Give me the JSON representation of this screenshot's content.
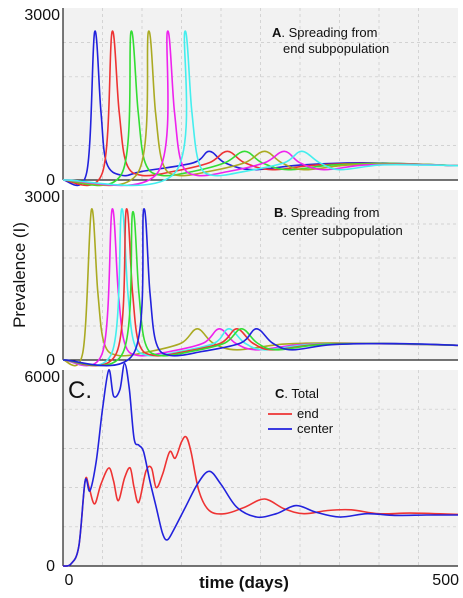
{
  "chart_data": [
    {
      "type": "line",
      "panel": "A",
      "annotation": {
        "letter": "A",
        "line1": ". Spreading from",
        "line2": "end subpopulation"
      },
      "ylim": [
        0,
        3000
      ],
      "y_ticks": [
        "3000",
        "0"
      ],
      "xlim": [
        0,
        500
      ],
      "series": [
        {
          "color": "#2222dd",
          "values": [
            [
              0,
              0
            ],
            [
              30,
              130
            ],
            [
              40,
              2580
            ],
            [
              48,
              1200
            ],
            [
              55,
              300
            ],
            [
              75,
              80
            ],
            [
              100,
              150
            ],
            [
              165,
              300
            ],
            [
              185,
              500
            ],
            [
              205,
              300
            ],
            [
              240,
              180
            ],
            [
              300,
              260
            ],
            [
              380,
              300
            ],
            [
              500,
              250
            ]
          ]
        },
        {
          "color": "#ee3333",
          "values": [
            [
              0,
              0
            ],
            [
              50,
              130
            ],
            [
              62,
              2580
            ],
            [
              71,
              1200
            ],
            [
              80,
              300
            ],
            [
              100,
              80
            ],
            [
              140,
              150
            ],
            [
              185,
              300
            ],
            [
              208,
              500
            ],
            [
              230,
              300
            ],
            [
              265,
              180
            ],
            [
              320,
              260
            ],
            [
              400,
              290
            ],
            [
              500,
              250
            ]
          ]
        },
        {
          "color": "#33dd33",
          "values": [
            [
              0,
              0
            ],
            [
              75,
              130
            ],
            [
              86,
              2580
            ],
            [
              95,
              1200
            ],
            [
              104,
              300
            ],
            [
              125,
              80
            ],
            [
              165,
              150
            ],
            [
              205,
              300
            ],
            [
              230,
              500
            ],
            [
              252,
              300
            ],
            [
              285,
              180
            ],
            [
              340,
              260
            ],
            [
              415,
              290
            ],
            [
              500,
              250
            ]
          ]
        },
        {
          "color": "#aaaa22",
          "values": [
            [
              0,
              0
            ],
            [
              95,
              130
            ],
            [
              108,
              2580
            ],
            [
              117,
              1200
            ],
            [
              126,
              300
            ],
            [
              145,
              80
            ],
            [
              185,
              150
            ],
            [
              230,
              300
            ],
            [
              255,
              500
            ],
            [
              277,
              300
            ],
            [
              305,
              180
            ],
            [
              360,
              260
            ],
            [
              430,
              280
            ],
            [
              500,
              250
            ]
          ]
        },
        {
          "color": "#ee22ee",
          "values": [
            [
              0,
              0
            ],
            [
              120,
              130
            ],
            [
              132,
              2580
            ],
            [
              141,
              1200
            ],
            [
              150,
              300
            ],
            [
              170,
              80
            ],
            [
              210,
              150
            ],
            [
              255,
              300
            ],
            [
              280,
              500
            ],
            [
              300,
              300
            ],
            [
              330,
              180
            ],
            [
              380,
              260
            ],
            [
              445,
              270
            ],
            [
              500,
              250
            ]
          ]
        },
        {
          "color": "#44eeee",
          "values": [
            [
              0,
              0
            ],
            [
              142,
              130
            ],
            [
              154,
              2580
            ],
            [
              163,
              1200
            ],
            [
              172,
              300
            ],
            [
              190,
              80
            ],
            [
              230,
              150
            ],
            [
              280,
              300
            ],
            [
              302,
              500
            ],
            [
              325,
              300
            ],
            [
              350,
              180
            ],
            [
              400,
              260
            ],
            [
              460,
              260
            ],
            [
              500,
              250
            ]
          ]
        }
      ]
    },
    {
      "type": "line",
      "panel": "B",
      "annotation": {
        "letter": "B",
        "line1": ". Spreading from",
        "line2": "center subpopulation"
      },
      "ylabel": "Prevalence (I)",
      "ylim": [
        0,
        3000
      ],
      "y_ticks": [
        "3000",
        "0"
      ],
      "xlim": [
        0,
        500
      ],
      "series": [
        {
          "color": "#aaaa22",
          "values": [
            [
              0,
              0
            ],
            [
              25,
              130
            ],
            [
              36,
              2650
            ],
            [
              44,
              1200
            ],
            [
              52,
              300
            ],
            [
              70,
              80
            ],
            [
              110,
              150
            ],
            [
              150,
              300
            ],
            [
              170,
              550
            ],
            [
              190,
              300
            ],
            [
              220,
              180
            ],
            [
              280,
              280
            ],
            [
              360,
              300
            ],
            [
              500,
              260
            ]
          ]
        },
        {
          "color": "#ee22ee",
          "values": [
            [
              0,
              0
            ],
            [
              50,
              130
            ],
            [
              62,
              2650
            ],
            [
              70,
              1200
            ],
            [
              78,
              300
            ],
            [
              95,
              80
            ],
            [
              135,
              150
            ],
            [
              178,
              300
            ],
            [
              198,
              550
            ],
            [
              218,
              300
            ],
            [
              245,
              180
            ],
            [
              300,
              270
            ],
            [
              380,
              290
            ],
            [
              500,
              260
            ]
          ]
        },
        {
          "color": "#44eeee",
          "values": [
            [
              0,
              0
            ],
            [
              62,
              130
            ],
            [
              74,
              2650
            ],
            [
              82,
              1200
            ],
            [
              90,
              300
            ],
            [
              108,
              80
            ],
            [
              148,
              150
            ],
            [
              192,
              300
            ],
            [
              210,
              550
            ],
            [
              230,
              300
            ],
            [
              255,
              180
            ],
            [
              310,
              270
            ],
            [
              390,
              290
            ],
            [
              500,
              260
            ]
          ]
        },
        {
          "color": "#ee3333",
          "values": [
            [
              0,
              0
            ],
            [
              68,
              130
            ],
            [
              80,
              2650
            ],
            [
              88,
              1200
            ],
            [
              96,
              300
            ],
            [
              115,
              80
            ],
            [
              155,
              150
            ],
            [
              200,
              300
            ],
            [
              220,
              550
            ],
            [
              240,
              300
            ],
            [
              265,
              180
            ],
            [
              320,
              270
            ],
            [
              400,
              290
            ],
            [
              500,
              260
            ]
          ]
        },
        {
          "color": "#33dd33",
          "values": [
            [
              0,
              0
            ],
            [
              76,
              130
            ],
            [
              88,
              2600
            ],
            [
              96,
              1200
            ],
            [
              104,
              300
            ],
            [
              122,
              80
            ],
            [
              162,
              150
            ],
            [
              205,
              300
            ],
            [
              226,
              550
            ],
            [
              246,
              300
            ],
            [
              270,
              180
            ],
            [
              325,
              270
            ],
            [
              405,
              290
            ],
            [
              500,
              260
            ]
          ]
        },
        {
          "color": "#2222dd",
          "values": [
            [
              0,
              0
            ],
            [
              90,
              130
            ],
            [
              102,
              2650
            ],
            [
              110,
              1200
            ],
            [
              118,
              300
            ],
            [
              136,
              80
            ],
            [
              176,
              150
            ],
            [
              225,
              300
            ],
            [
              245,
              550
            ],
            [
              265,
              300
            ],
            [
              290,
              180
            ],
            [
              340,
              270
            ],
            [
              420,
              290
            ],
            [
              500,
              260
            ]
          ]
        }
      ]
    },
    {
      "type": "line",
      "panel": "C",
      "annotation": {
        "letter": "C",
        "line1": ". Total"
      },
      "big_letter": "C.",
      "ylim": [
        0,
        6000
      ],
      "y_ticks": [
        "6000",
        "0"
      ],
      "xlim": [
        0,
        500
      ],
      "x_ticks": [
        "0",
        "500"
      ],
      "xlabel": "time (days)",
      "series": [
        {
          "name": "end",
          "color": "#ee3333",
          "values": [
            [
              0,
              0
            ],
            [
              10,
              60
            ],
            [
              20,
              600
            ],
            [
              28,
              2600
            ],
            [
              33,
              2400
            ],
            [
              40,
              1900
            ],
            [
              48,
              2500
            ],
            [
              58,
              3000
            ],
            [
              64,
              2600
            ],
            [
              70,
              2000
            ],
            [
              78,
              2700
            ],
            [
              85,
              3000
            ],
            [
              90,
              2400
            ],
            [
              96,
              1950
            ],
            [
              105,
              2900
            ],
            [
              112,
              3000
            ],
            [
              118,
              2400
            ],
            [
              126,
              2800
            ],
            [
              135,
              3500
            ],
            [
              142,
              3300
            ],
            [
              150,
              3800
            ],
            [
              156,
              3950
            ],
            [
              162,
              3500
            ],
            [
              172,
              2300
            ],
            [
              185,
              1700
            ],
            [
              205,
              1600
            ],
            [
              230,
              1800
            ],
            [
              255,
              2050
            ],
            [
              280,
              1750
            ],
            [
              305,
              1600
            ],
            [
              335,
              1700
            ],
            [
              365,
              1720
            ],
            [
              400,
              1600
            ],
            [
              440,
              1620
            ],
            [
              500,
              1580
            ]
          ]
        },
        {
          "name": "center",
          "color": "#2222dd",
          "values": [
            [
              0,
              0
            ],
            [
              10,
              60
            ],
            [
              20,
              600
            ],
            [
              28,
              2600
            ],
            [
              34,
              2300
            ],
            [
              42,
              3200
            ],
            [
              50,
              4800
            ],
            [
              58,
              6000
            ],
            [
              64,
              5200
            ],
            [
              72,
              5400
            ],
            [
              78,
              6200
            ],
            [
              84,
              5400
            ],
            [
              90,
              3900
            ],
            [
              96,
              3700
            ],
            [
              102,
              3500
            ],
            [
              110,
              2600
            ],
            [
              118,
              1800
            ],
            [
              126,
              1000
            ],
            [
              132,
              800
            ],
            [
              140,
              1100
            ],
            [
              155,
              1800
            ],
            [
              170,
              2500
            ],
            [
              185,
              2900
            ],
            [
              200,
              2500
            ],
            [
              220,
              1800
            ],
            [
              245,
              1500
            ],
            [
              270,
              1600
            ],
            [
              295,
              1850
            ],
            [
              320,
              1650
            ],
            [
              350,
              1500
            ],
            [
              385,
              1600
            ],
            [
              420,
              1550
            ],
            [
              460,
              1560
            ],
            [
              500,
              1560
            ]
          ]
        }
      ]
    }
  ]
}
